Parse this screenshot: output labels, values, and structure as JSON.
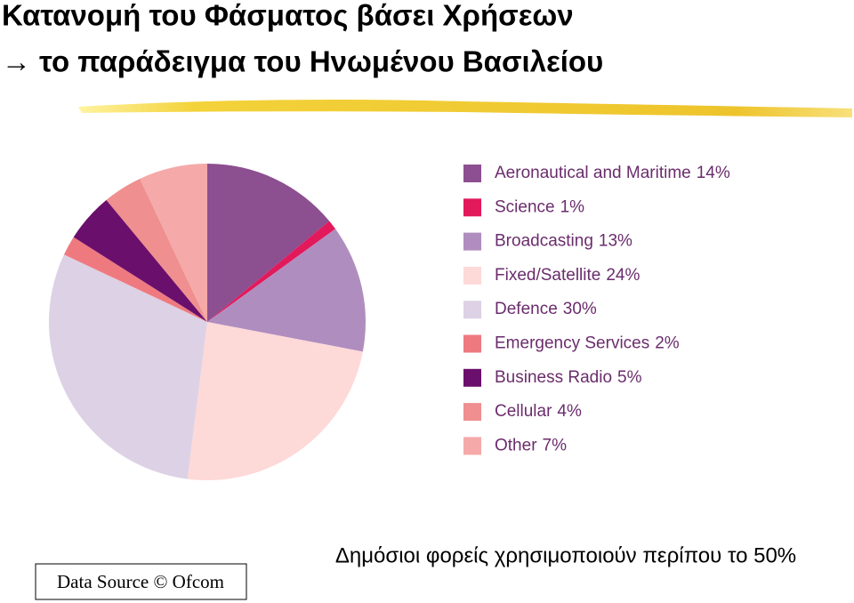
{
  "chart_data": {
    "type": "pie",
    "title": "Κατανομή του Φάσματος βάσει Χρήσεων",
    "subtitle": "→ το παράδειγμα του Ηνωμένου Βασιλείου",
    "categories": [
      "Aeronautical and Maritime",
      "Science",
      "Broadcasting",
      "Fixed/Satellite",
      "Defence",
      "Emergency Services",
      "Business Radio",
      "Cellular",
      "Other"
    ],
    "values": [
      14,
      1,
      13,
      24,
      30,
      2,
      5,
      4,
      7
    ],
    "value_labels": [
      "14%",
      "1%",
      "13%",
      "24%",
      "30%",
      "2%",
      "5%",
      "4%",
      "7%"
    ],
    "colors": [
      "#8c4f90",
      "#e2195b",
      "#b08dbf",
      "#fdd9d8",
      "#ddd1e5",
      "#ee7a80",
      "#6b0f6c",
      "#ef8f8f",
      "#f5a9a9"
    ],
    "source": "Data Source © Ofcom",
    "annotation": "Δημόσιοι φορείς χρησιμοποιούν περίπου το 50%"
  }
}
